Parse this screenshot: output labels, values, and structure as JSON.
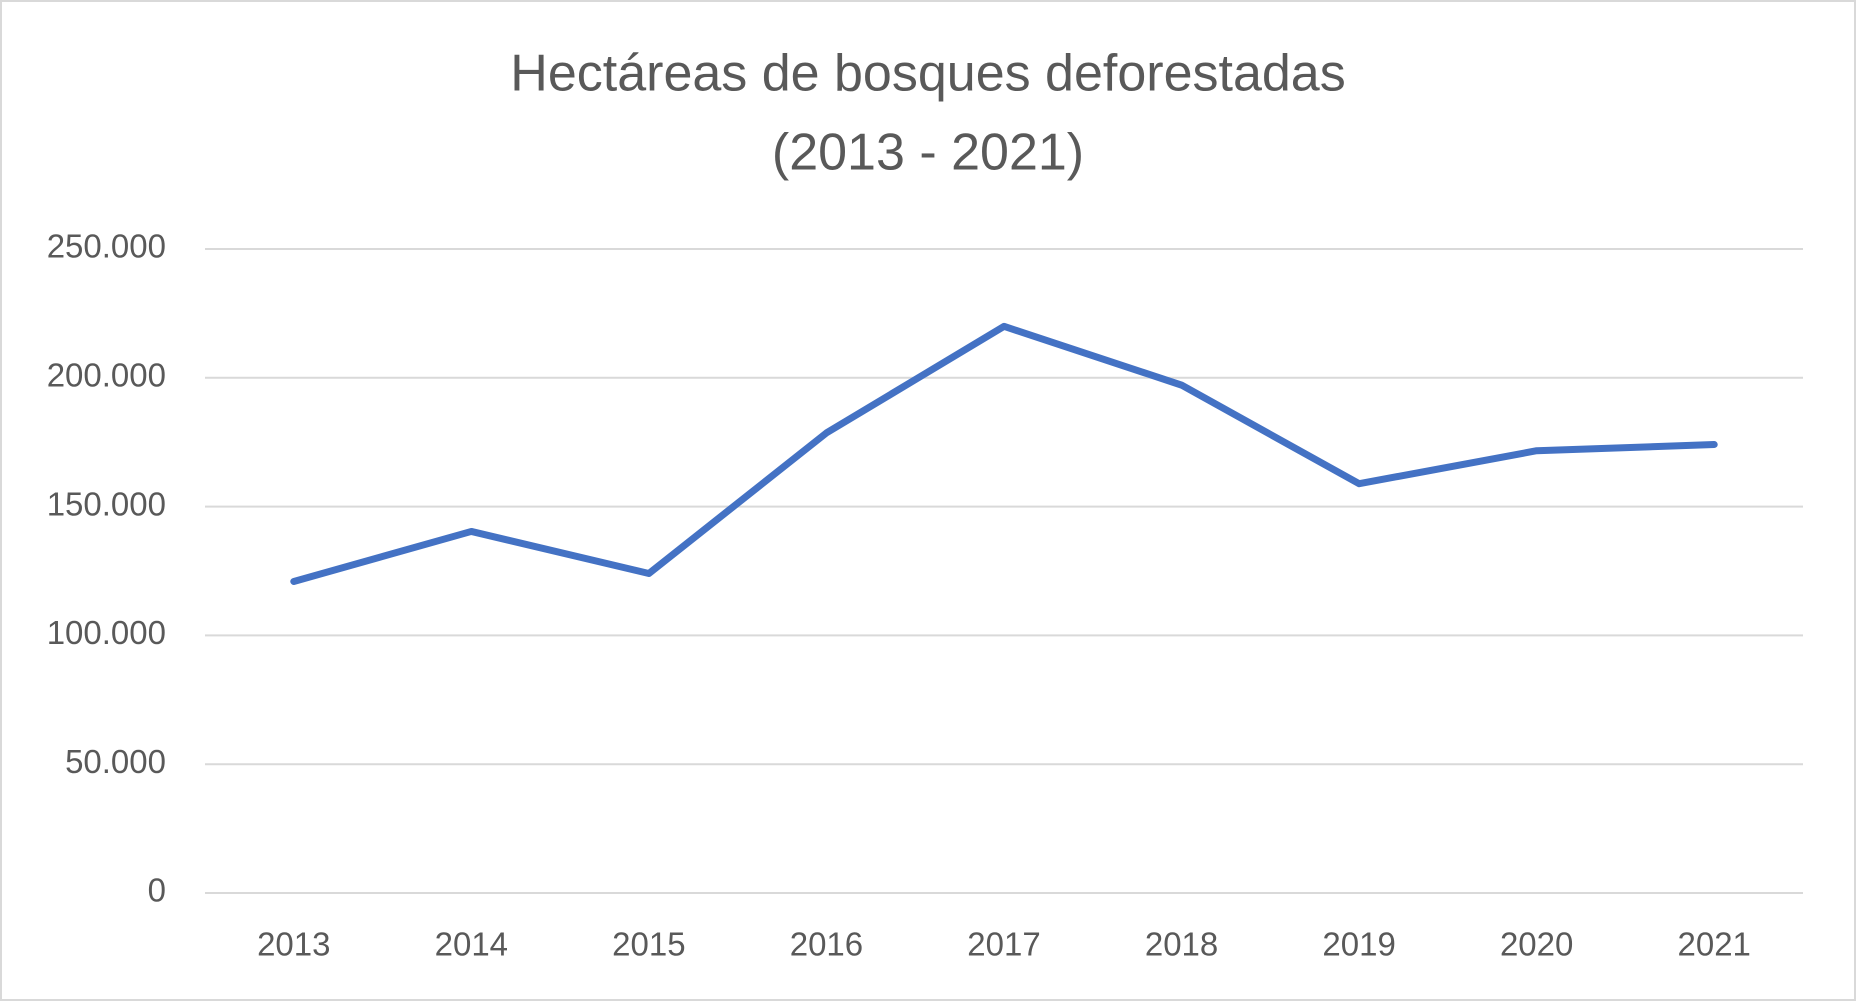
{
  "chart_data": {
    "type": "line",
    "title": [
      "Hectáreas de bosques deforestadas",
      "(2013 - 2021)"
    ],
    "categories": [
      "2013",
      "2014",
      "2015",
      "2016",
      "2017",
      "2018",
      "2019",
      "2020",
      "2021"
    ],
    "values": [
      120933,
      140356,
      124035,
      178597,
      219973,
      197159,
      158894,
      171685,
      174103
    ],
    "color": "#4472c4",
    "ylim": [
      0,
      250000
    ],
    "yticks": [
      0,
      {
        "value": 50000,
        "label": "50.000"
      },
      {
        "value": 100000,
        "label": "100.000"
      },
      {
        "value": 150000,
        "label": "150.000"
      },
      {
        "value": 200000,
        "label": "200.000"
      },
      {
        "value": 250000,
        "label": "250.000"
      }
    ],
    "grid": true
  }
}
